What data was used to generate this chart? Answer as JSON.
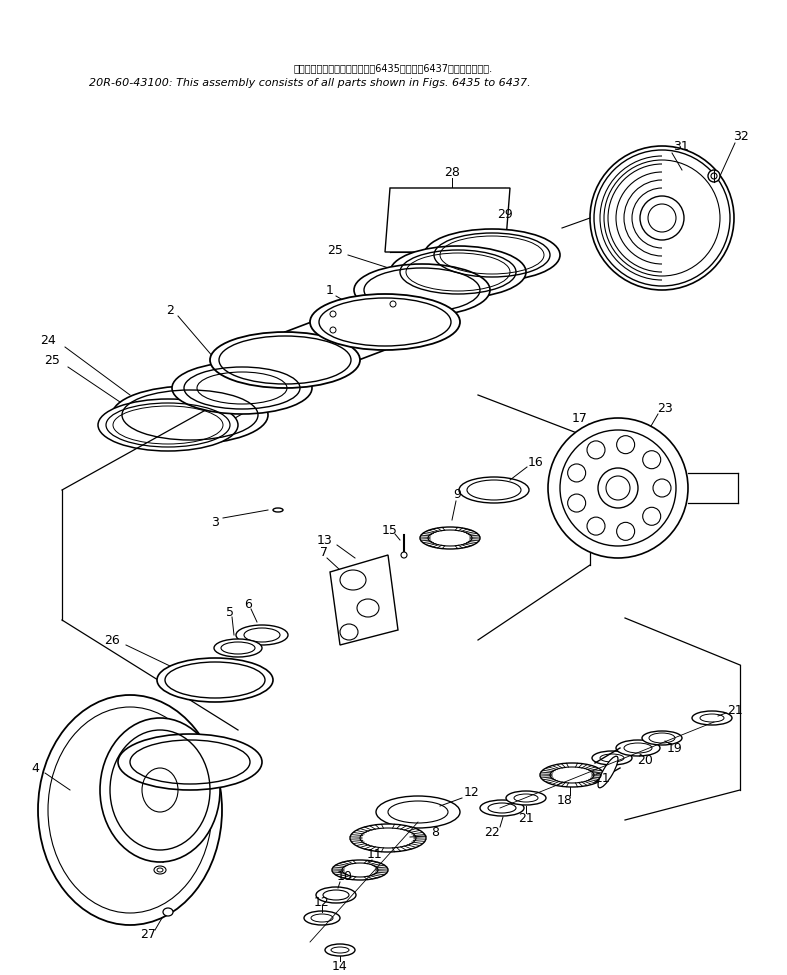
{
  "title_jp": "このアセンブリの構成部品は第6435図から第6437図まで含みます.",
  "title_en": "20R-60-43100: This assembly consists of all parts shown in Figs. 6435 to 6437.",
  "bg_color": "#ffffff",
  "line_color": "#000000",
  "label_color": "#000000"
}
